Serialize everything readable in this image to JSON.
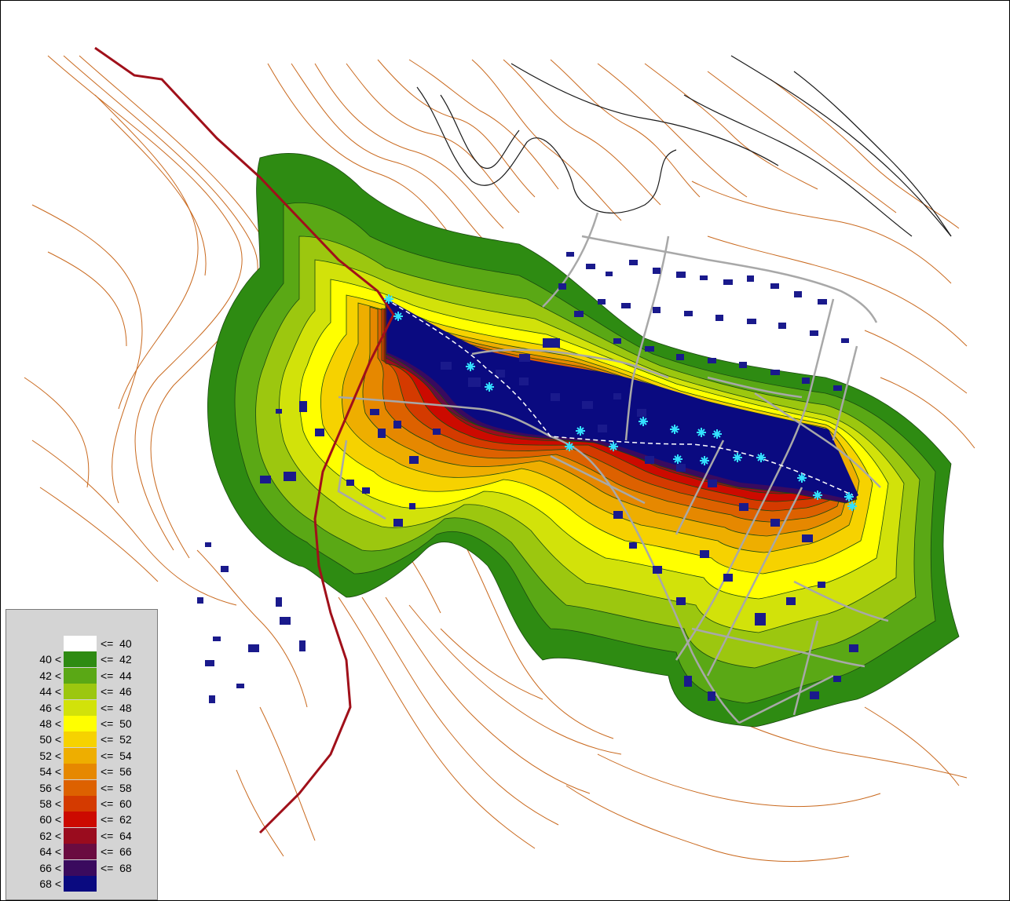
{
  "legend": {
    "classes": [
      {
        "lower": "",
        "upper": "<=  40",
        "color": "#ffffff"
      },
      {
        "lower": "40 <",
        "upper": "<=  42",
        "color": "#2e8b12"
      },
      {
        "lower": "42 <",
        "upper": "<=  44",
        "color": "#5aa815"
      },
      {
        "lower": "44 <",
        "upper": "<=  46",
        "color": "#9cc70f"
      },
      {
        "lower": "46 <",
        "upper": "<=  48",
        "color": "#d2e20a"
      },
      {
        "lower": "48 <",
        "upper": "<=  50",
        "color": "#ffff00"
      },
      {
        "lower": "50 <",
        "upper": "<=  52",
        "color": "#f6d200"
      },
      {
        "lower": "52 <",
        "upper": "<=  54",
        "color": "#eeae00"
      },
      {
        "lower": "54 <",
        "upper": "<=  56",
        "color": "#e68800"
      },
      {
        "lower": "56 <",
        "upper": "<=  58",
        "color": "#dd6100"
      },
      {
        "lower": "58 <",
        "upper": "<=  60",
        "color": "#d43a00"
      },
      {
        "lower": "60 <",
        "upper": "<=  62",
        "color": "#cc0a00"
      },
      {
        "lower": "62 <",
        "upper": "<=  64",
        "color": "#9a0c1e"
      },
      {
        "lower": "64 <",
        "upper": "<=  66",
        "color": "#6a0c40"
      },
      {
        "lower": "66 <",
        "upper": "<=  68",
        "color": "#3a0a5e"
      },
      {
        "lower": "68 <",
        "upper": "",
        "color": "#0a0a80"
      }
    ]
  },
  "map": {
    "contour_color": "#c9691e",
    "road_color": "#a8a8a8",
    "railway_color": "#a0101a",
    "building_color": "#1a1a8c",
    "source_marker_color": "#33e0ff"
  }
}
